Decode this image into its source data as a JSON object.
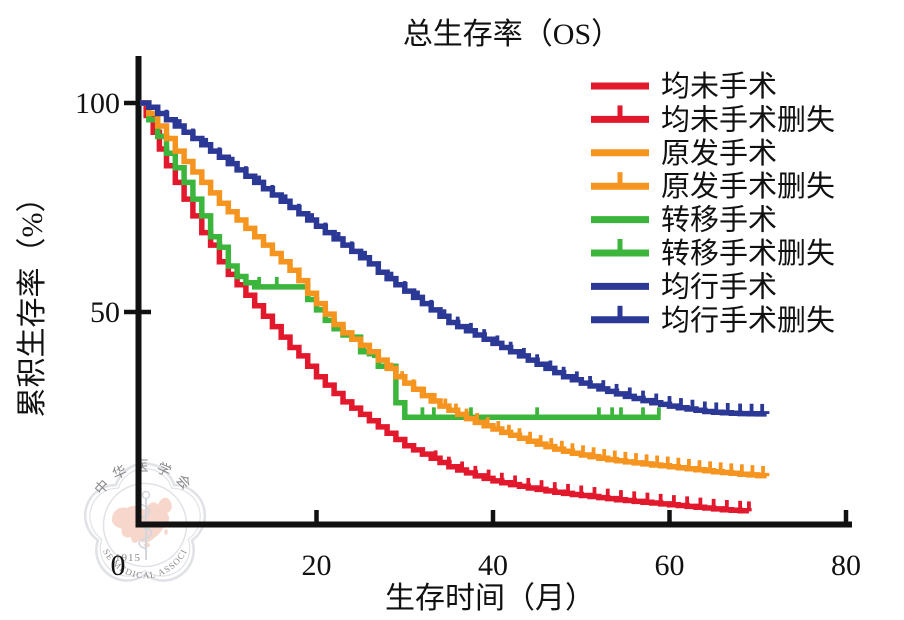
{
  "title": "总生存率（OS）",
  "axes": {
    "xlabel": "生存时间（月）",
    "ylabel": "累积生存率（%）",
    "x_ticks": [
      0,
      20,
      40,
      60,
      80
    ],
    "y_ticks": [
      100,
      50
    ],
    "xlim": [
      0,
      80
    ],
    "ylim": [
      0,
      100
    ]
  },
  "chart_data": {
    "type": "line",
    "subtype": "kaplan-meier-step",
    "title": "总生存率（OS）",
    "xlabel": "生存时间（月）",
    "ylabel": "累积生存率（%）",
    "xlim": [
      0,
      80
    ],
    "ylim": [
      0,
      100
    ],
    "legend_position": "upper right",
    "grid": false,
    "series": [
      {
        "name": "均未手术",
        "censored_name": "均未手术删失",
        "color": "#e2182d",
        "points": [
          [
            0,
            100
          ],
          [
            0.7,
            97
          ],
          [
            1.5,
            93
          ],
          [
            2.2,
            89
          ],
          [
            3,
            85
          ],
          [
            4,
            81
          ],
          [
            5,
            77
          ],
          [
            6,
            73
          ],
          [
            7,
            69
          ],
          [
            8,
            66
          ],
          [
            9,
            62
          ],
          [
            10,
            59
          ],
          [
            11,
            56.5
          ],
          [
            12,
            54
          ],
          [
            13,
            51.5
          ],
          [
            14,
            49
          ],
          [
            15,
            46.5
          ],
          [
            16,
            44
          ],
          [
            17,
            41.5
          ],
          [
            18,
            39.5
          ],
          [
            19,
            37
          ],
          [
            20,
            34.5
          ],
          [
            21,
            32.5
          ],
          [
            22,
            30.5
          ],
          [
            23,
            28.5
          ],
          [
            24,
            27
          ],
          [
            25,
            25.5
          ],
          [
            26,
            24
          ],
          [
            27,
            22.5
          ],
          [
            28,
            21
          ],
          [
            29,
            19.5
          ],
          [
            30,
            18
          ],
          [
            31,
            17
          ],
          [
            32,
            16
          ],
          [
            33,
            15
          ],
          [
            34,
            14
          ],
          [
            35,
            13
          ],
          [
            36,
            12.2
          ],
          [
            37,
            11.5
          ],
          [
            38,
            10.8
          ],
          [
            39,
            10.2
          ],
          [
            40,
            9.6
          ],
          [
            42,
            8.7
          ],
          [
            44,
            7.9
          ],
          [
            46,
            7.2
          ],
          [
            48,
            6.6
          ],
          [
            50,
            6.1
          ],
          [
            52,
            5.6
          ],
          [
            54,
            5.1
          ],
          [
            56,
            4.7
          ],
          [
            58,
            4.3
          ],
          [
            60,
            3.9
          ],
          [
            62,
            3.5
          ],
          [
            64,
            3.1
          ],
          [
            66,
            2.7
          ],
          [
            69,
            2.3
          ]
        ],
        "censor_months": [
          33.5,
          35,
          36.5,
          38,
          39.5,
          41,
          42.5,
          44,
          45.5,
          47,
          48.5,
          50,
          51.5,
          53,
          54.5,
          56,
          57.5,
          59,
          60.5,
          62,
          63.5,
          65,
          66.5,
          68,
          69
        ]
      },
      {
        "name": "转移手术",
        "censored_name": "转移手术删失",
        "color": "#3cb53c",
        "points": [
          [
            0,
            100
          ],
          [
            1,
            96
          ],
          [
            2,
            92
          ],
          [
            3,
            88
          ],
          [
            4,
            84.5
          ],
          [
            5,
            81
          ],
          [
            6,
            77
          ],
          [
            7,
            73
          ],
          [
            8,
            68
          ],
          [
            9,
            65.5
          ],
          [
            10,
            61
          ],
          [
            11,
            58.5
          ],
          [
            12,
            57
          ],
          [
            13,
            56
          ],
          [
            18.5,
            56
          ],
          [
            19,
            53
          ],
          [
            20,
            50.5
          ],
          [
            21,
            48
          ],
          [
            22,
            46
          ],
          [
            23,
            44.5
          ],
          [
            24,
            44
          ],
          [
            25,
            40.5
          ],
          [
            26,
            40
          ],
          [
            27,
            37
          ],
          [
            28.8,
            37
          ],
          [
            29,
            28.3
          ],
          [
            29.8,
            28.3
          ],
          [
            30,
            24.8
          ],
          [
            59,
            24.8
          ]
        ],
        "censor_months": [
          13.5,
          15.5,
          25.4,
          26.5,
          32,
          33.3,
          37.5,
          45,
          52,
          53.5,
          54.5,
          57,
          58.8
        ]
      },
      {
        "name": "原发手术",
        "censored_name": "原发手术删失",
        "color": "#f5941e",
        "points": [
          [
            0,
            100
          ],
          [
            1,
            97.5
          ],
          [
            2,
            94.5
          ],
          [
            3,
            91.5
          ],
          [
            4,
            88.5
          ],
          [
            5,
            86
          ],
          [
            6,
            83.5
          ],
          [
            7,
            81
          ],
          [
            8,
            78.5
          ],
          [
            9,
            76
          ],
          [
            10,
            74
          ],
          [
            11,
            72
          ],
          [
            12,
            70
          ],
          [
            13,
            68
          ],
          [
            14,
            66
          ],
          [
            15,
            64
          ],
          [
            16,
            62
          ],
          [
            17,
            60
          ],
          [
            18,
            57.5
          ],
          [
            19,
            54.5
          ],
          [
            20,
            52
          ],
          [
            21,
            49.5
          ],
          [
            22,
            47
          ],
          [
            23,
            45
          ],
          [
            24,
            43.5
          ],
          [
            25,
            42
          ],
          [
            26,
            40.5
          ],
          [
            27,
            38.5
          ],
          [
            28,
            36.5
          ],
          [
            29,
            34.5
          ],
          [
            30,
            33
          ],
          [
            31,
            31.5
          ],
          [
            32,
            30
          ],
          [
            33,
            28.7
          ],
          [
            34,
            27.5
          ],
          [
            35,
            26.5
          ],
          [
            36,
            25.5
          ],
          [
            37,
            24.5
          ],
          [
            38,
            23.6
          ],
          [
            39,
            22.8
          ],
          [
            40,
            22
          ],
          [
            41,
            21.2
          ],
          [
            42,
            20.5
          ],
          [
            43,
            19.8
          ],
          [
            44,
            19.1
          ],
          [
            45,
            18.4
          ],
          [
            46,
            17.8
          ],
          [
            47,
            17.2
          ],
          [
            48,
            16.7
          ],
          [
            49,
            16.2
          ],
          [
            50,
            15.8
          ],
          [
            52,
            15
          ],
          [
            54,
            14.4
          ],
          [
            56,
            13.9
          ],
          [
            58,
            13.4
          ],
          [
            60,
            13
          ],
          [
            62,
            12.5
          ],
          [
            64,
            12
          ],
          [
            66,
            11.6
          ],
          [
            68,
            11.2
          ],
          [
            71,
            10.7
          ]
        ],
        "censor_months": [
          28.5,
          29.7,
          31,
          32.2,
          33.4,
          34.6,
          35.8,
          37,
          38.2,
          39.4,
          40.6,
          41.8,
          43,
          44.2,
          45.4,
          46.6,
          47.8,
          49,
          50.2,
          51.4,
          52.6,
          53.8,
          55,
          56.2,
          57.4,
          58.6,
          59.8,
          61,
          62.2,
          63.4,
          64.6,
          65.8,
          67,
          68.2,
          69.4,
          70.6
        ]
      },
      {
        "name": "均行手术",
        "censored_name": "均行手术删失",
        "color": "#2b3896",
        "points": [
          [
            0,
            100
          ],
          [
            1,
            99
          ],
          [
            2,
            97.5
          ],
          [
            3,
            96
          ],
          [
            4,
            94.5
          ],
          [
            5,
            93
          ],
          [
            6,
            91.5
          ],
          [
            7,
            90
          ],
          [
            8,
            88.5
          ],
          [
            9,
            87
          ],
          [
            10,
            85.5
          ],
          [
            11,
            84
          ],
          [
            12,
            82.5
          ],
          [
            13,
            81
          ],
          [
            14,
            79.5
          ],
          [
            15,
            78
          ],
          [
            16,
            76.5
          ],
          [
            17,
            75
          ],
          [
            18,
            73.5
          ],
          [
            19,
            72
          ],
          [
            20,
            70.5
          ],
          [
            21,
            69
          ],
          [
            22,
            67.5
          ],
          [
            23,
            66
          ],
          [
            24,
            64.5
          ],
          [
            25,
            63
          ],
          [
            26,
            61.5
          ],
          [
            27,
            59.5
          ],
          [
            28,
            58
          ],
          [
            29,
            56.5
          ],
          [
            30,
            55
          ],
          [
            31,
            53.5
          ],
          [
            32,
            52
          ],
          [
            33,
            50.5
          ],
          [
            34,
            49
          ],
          [
            35,
            47.5
          ],
          [
            36,
            46.5
          ],
          [
            37,
            45.5
          ],
          [
            38,
            44.5
          ],
          [
            39,
            43.5
          ],
          [
            40,
            42.5
          ],
          [
            41,
            41.5
          ],
          [
            42,
            40.5
          ],
          [
            43,
            39.5
          ],
          [
            44,
            38.5
          ],
          [
            45,
            37.5
          ],
          [
            46,
            36.5
          ],
          [
            47,
            35.5
          ],
          [
            48,
            34.5
          ],
          [
            49,
            33.8
          ],
          [
            50,
            33
          ],
          [
            51,
            32.3
          ],
          [
            52,
            31.6
          ],
          [
            53,
            31
          ],
          [
            54,
            30.4
          ],
          [
            55,
            29.8
          ],
          [
            56,
            29.3
          ],
          [
            57,
            28.8
          ],
          [
            58,
            28.3
          ],
          [
            59,
            27.9
          ],
          [
            60,
            27.5
          ],
          [
            61,
            27.1
          ],
          [
            62,
            26.8
          ],
          [
            63,
            26.5
          ],
          [
            64,
            26.2
          ],
          [
            65,
            26
          ],
          [
            66,
            25.9
          ],
          [
            67,
            25.8
          ],
          [
            68,
            25.7
          ],
          [
            71,
            25.6
          ]
        ],
        "censor_months": [
          3,
          4.5,
          6,
          7.5,
          9,
          10.5,
          12,
          13.5,
          15,
          16.5,
          18,
          19.5,
          21,
          22.5,
          24,
          25.5,
          27,
          28.5,
          30,
          31.5,
          33,
          34.5,
          36,
          37.5,
          39,
          40.5,
          42,
          43.5,
          45,
          46.5,
          48,
          49.5,
          51,
          52.5,
          54,
          55.5,
          57,
          58.5,
          60,
          61.3,
          62.6,
          64,
          65.3,
          66.6,
          68,
          69.3,
          70.5
        ]
      }
    ]
  },
  "legend": {
    "entries": [
      {
        "label": "均未手术",
        "color": "#e2182d",
        "censored": false
      },
      {
        "label": "均未手术删失",
        "color": "#e2182d",
        "censored": true
      },
      {
        "label": "原发手术",
        "color": "#f5941e",
        "censored": false
      },
      {
        "label": "原发手术删失",
        "color": "#f5941e",
        "censored": true
      },
      {
        "label": "转移手术",
        "color": "#3cb53c",
        "censored": false
      },
      {
        "label": "转移手术删失",
        "color": "#3cb53c",
        "censored": true
      },
      {
        "label": "均行手术",
        "color": "#2b3896",
        "censored": false
      },
      {
        "label": "均行手术删失",
        "color": "#2b3896",
        "censored": true
      }
    ]
  },
  "watermark": {
    "top_text": "中华医学会",
    "bottom_text": "CHINESE MEDICAL ASSOCIATION",
    "year": "1915",
    "map_color": "#f1b09a",
    "line_color": "#c2c7d3",
    "text_color": "#a9aebc"
  }
}
